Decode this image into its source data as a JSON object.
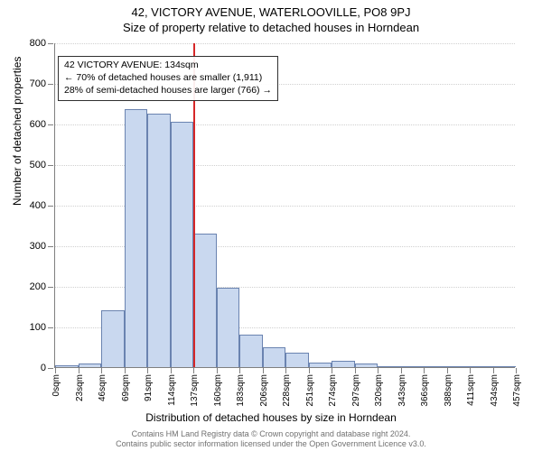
{
  "title": "42, VICTORY AVENUE, WATERLOOVILLE, PO8 9PJ",
  "subtitle": "Size of property relative to detached houses in Horndean",
  "ylabel": "Number of detached properties",
  "xlabel": "Distribution of detached houses by size in Horndean",
  "copyright_line1": "Contains HM Land Registry data © Crown copyright and database right 2024.",
  "copyright_line2": "Contains public sector information licensed under the Open Government Licence v3.0.",
  "annotation": {
    "line1": "42 VICTORY AVENUE: 134sqm",
    "line2": "← 70% of detached houses are smaller (1,911)",
    "line3": "28% of semi-detached houses are larger (766) →"
  },
  "marker": {
    "position_index": 6,
    "color": "#d62728"
  },
  "chart": {
    "type": "histogram",
    "ylim": [
      0,
      800
    ],
    "ytick_step": 100,
    "yticks": [
      0,
      100,
      200,
      300,
      400,
      500,
      600,
      700,
      800
    ],
    "xtick_labels": [
      "0sqm",
      "23sqm",
      "46sqm",
      "69sqm",
      "91sqm",
      "114sqm",
      "137sqm",
      "160sqm",
      "183sqm",
      "206sqm",
      "228sqm",
      "251sqm",
      "274sqm",
      "297sqm",
      "320sqm",
      "343sqm",
      "366sqm",
      "388sqm",
      "411sqm",
      "434sqm",
      "457sqm"
    ],
    "values": [
      5,
      10,
      140,
      635,
      625,
      605,
      330,
      195,
      80,
      50,
      35,
      12,
      15,
      8,
      3,
      2,
      2,
      2,
      2,
      1
    ],
    "bar_fill": "#c9d8ef",
    "bar_stroke": "#6a83b0",
    "grid_color": "#d0d0d0",
    "axis_color": "#7f7f7f",
    "background": "#ffffff",
    "label_fontsize": 12,
    "tick_fontsize": 11,
    "title_fontsize": 13,
    "annotation_fontsize": 10.5
  }
}
